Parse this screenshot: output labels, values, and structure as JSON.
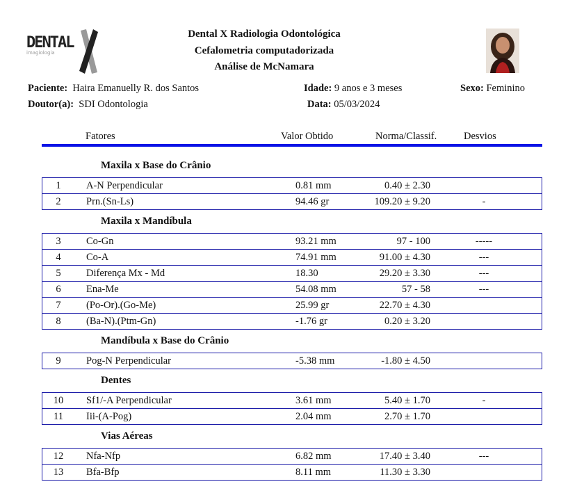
{
  "header": {
    "logo_text": "DENTAL X",
    "title1": "Dental X Radiologia Odontológica",
    "title2": "Cefalometria computadorizada",
    "title3": "Análise de McNamara"
  },
  "patient": {
    "patient_label": "Paciente:",
    "patient_value": "Haira Emanuelly R. dos Santos",
    "doctor_label": "Doutor(a):",
    "doctor_value": "SDI Odontologia",
    "age_label": "Idade:",
    "age_value": "9 anos e 3 meses",
    "date_label": "Data:",
    "date_value": "05/03/2024",
    "sex_label": "Sexo:",
    "sex_value": "Feminino"
  },
  "columns": {
    "factors": "Fatores",
    "value": "Valor Obtido",
    "norm": "Norma/Classif.",
    "deviation": "Desvios"
  },
  "sections": [
    {
      "title": "Maxila x Base do Crânio",
      "rows": [
        {
          "num": "1",
          "factor": "A-N Perpendicular",
          "value": "0.81 mm",
          "norm": "0.40 ± 2.30",
          "dev": ""
        },
        {
          "num": "2",
          "factor": "Prn.(Sn-Ls)",
          "value": "94.46 gr",
          "norm": "109.20 ± 9.20",
          "dev": "-"
        }
      ]
    },
    {
      "title": "Maxila x Mandíbula",
      "rows": [
        {
          "num": "3",
          "factor": "Co-Gn",
          "value": "93.21 mm",
          "norm": "97 - 100",
          "dev": "-----"
        },
        {
          "num": "4",
          "factor": "Co-A",
          "value": "74.91 mm",
          "norm": "91.00 ± 4.30",
          "dev": "---"
        },
        {
          "num": "5",
          "factor": "Diferença Mx - Md",
          "value": "18.30",
          "norm": "29.20 ± 3.30",
          "dev": "---"
        },
        {
          "num": "6",
          "factor": "Ena-Me",
          "value": "54.08 mm",
          "norm": "57 - 58",
          "dev": "---"
        },
        {
          "num": "7",
          "factor": "(Po-Or).(Go-Me)",
          "value": "25.99 gr",
          "norm": "22.70 ± 4.30",
          "dev": ""
        },
        {
          "num": "8",
          "factor": "(Ba-N).(Ptm-Gn)",
          "value": "-1.76 gr",
          "norm": "0.20 ± 3.20",
          "dev": ""
        }
      ]
    },
    {
      "title": "Mandíbula x Base do Crânio",
      "rows": [
        {
          "num": "9",
          "factor": "Pog-N Perpendicular",
          "value": "-5.38 mm",
          "norm": "-1.80 ± 4.50",
          "dev": ""
        }
      ]
    },
    {
      "title": "Dentes",
      "rows": [
        {
          "num": "10",
          "factor": "Sf1/-A Perpendicular",
          "value": "3.61 mm",
          "norm": "5.40 ± 1.70",
          "dev": "-"
        },
        {
          "num": "11",
          "factor": "Iii-(A-Pog)",
          "value": "2.04 mm",
          "norm": "2.70 ± 1.70",
          "dev": ""
        }
      ]
    },
    {
      "title": "Vias Aéreas",
      "rows": [
        {
          "num": "12",
          "factor": "Nfa-Nfp",
          "value": "6.82 mm",
          "norm": "17.40 ± 3.40",
          "dev": "---"
        },
        {
          "num": "13",
          "factor": "Bfa-Bfp",
          "value": "8.11 mm",
          "norm": "11.30 ± 3.30",
          "dev": ""
        }
      ]
    }
  ],
  "colors": {
    "accent": "#0a14e6",
    "border": "#1a1aa8"
  }
}
